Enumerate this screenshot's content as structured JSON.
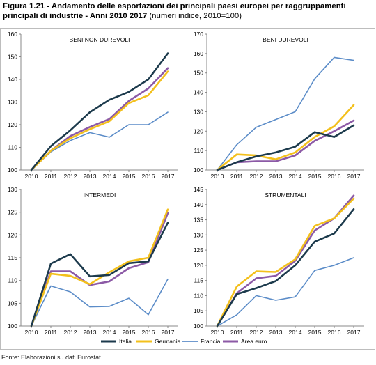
{
  "figure": {
    "title_bold": "Figura 1.21 - Andamento delle esportazioni dei principali paesi europei per raggruppamenti principali di industrie - Anni 2010 2017",
    "title_normal": "(numeri indice, 2010=100)",
    "source": "Fonte: Elaborazioni su dati Eurostat"
  },
  "colors": {
    "Italia": "#1c3a4c",
    "Germania": "#f3c01c",
    "Francia": "#5b8cc8",
    "Area euro": "#8c5aa6"
  },
  "legend": [
    "Italia",
    "Germania",
    "Francia",
    "Area euro"
  ],
  "chart_data": [
    {
      "type": "line",
      "title": "BENI NON DUREVOLI",
      "x": [
        "2010",
        "2011",
        "2012",
        "2013",
        "2014",
        "2015",
        "2016",
        "2017"
      ],
      "ylim": [
        100,
        160
      ],
      "yticks": [
        100,
        110,
        120,
        130,
        140,
        150,
        160
      ],
      "grid": false,
      "series": [
        {
          "name": "Italia",
          "values": [
            100,
            110.5,
            117.5,
            125.5,
            131,
            134.5,
            140,
            151.5
          ]
        },
        {
          "name": "Germania",
          "values": [
            100,
            108.5,
            114,
            118,
            121.5,
            129.5,
            133,
            143.5
          ]
        },
        {
          "name": "Francia",
          "values": [
            100,
            108,
            113,
            116.5,
            114.5,
            120,
            120,
            125.5
          ]
        },
        {
          "name": "Area euro",
          "values": [
            100,
            108.5,
            115,
            119,
            122.5,
            130.5,
            136,
            145
          ]
        }
      ]
    },
    {
      "type": "line",
      "title": "BENI DUREVOLI",
      "x": [
        "2010",
        "2011",
        "2012",
        "2013",
        "2014",
        "2015",
        "2016",
        "2017"
      ],
      "ylim": [
        100,
        170
      ],
      "yticks": [
        100,
        110,
        120,
        130,
        140,
        150,
        160,
        170
      ],
      "grid": false,
      "series": [
        {
          "name": "Italia",
          "values": [
            100,
            104,
            107,
            109,
            112,
            119.5,
            117,
            123
          ]
        },
        {
          "name": "Germania",
          "values": [
            100,
            108,
            107.5,
            105.5,
            109,
            117,
            122.5,
            133.5
          ]
        },
        {
          "name": "Francia",
          "values": [
            100,
            113,
            122,
            126,
            130,
            147,
            158,
            156.5
          ]
        },
        {
          "name": "Area euro",
          "values": [
            100,
            104,
            104.5,
            104.5,
            107.5,
            115,
            120,
            125.5
          ]
        }
      ]
    },
    {
      "type": "line",
      "title": "INTERMEDI",
      "x": [
        "2010",
        "2011",
        "2012",
        "2013",
        "2014",
        "2015",
        "2016",
        "2017"
      ],
      "ylim": [
        100,
        130
      ],
      "yticks": [
        100,
        105,
        110,
        115,
        120,
        125,
        130
      ],
      "grid": false,
      "series": [
        {
          "name": "Italia",
          "values": [
            100,
            113.7,
            115.8,
            110.9,
            111.2,
            113.8,
            114.2,
            122.7
          ]
        },
        {
          "name": "Germania",
          "values": [
            100,
            111.5,
            111,
            109.2,
            111.8,
            114.2,
            115,
            125.6
          ]
        },
        {
          "name": "Francia",
          "values": [
            100,
            108.8,
            107.5,
            104.2,
            104.3,
            106.1,
            102.5,
            110.3
          ]
        },
        {
          "name": "Area euro",
          "values": [
            100,
            112,
            112,
            109,
            109.8,
            112.7,
            114,
            124.8
          ]
        }
      ]
    },
    {
      "type": "line",
      "title": "STRUMENTALI",
      "x": [
        "2010",
        "2011",
        "2012",
        "2013",
        "2014",
        "2015",
        "2016",
        "2017"
      ],
      "ylim": [
        100,
        145
      ],
      "yticks": [
        100,
        105,
        110,
        115,
        120,
        125,
        130,
        135,
        140,
        145
      ],
      "grid": false,
      "series": [
        {
          "name": "Italia",
          "values": [
            100,
            110.5,
            112.5,
            114.8,
            120,
            127.8,
            130.5,
            138.5
          ]
        },
        {
          "name": "Germania",
          "values": [
            100,
            113,
            118,
            117.8,
            122,
            133,
            135.5,
            142
          ]
        },
        {
          "name": "Francia",
          "values": [
            100,
            103.7,
            110,
            108.5,
            109.6,
            118.3,
            120,
            122.5
          ]
        },
        {
          "name": "Area euro",
          "values": [
            100,
            110.8,
            115.7,
            116.5,
            121.5,
            131.5,
            135.5,
            143
          ]
        }
      ]
    }
  ]
}
